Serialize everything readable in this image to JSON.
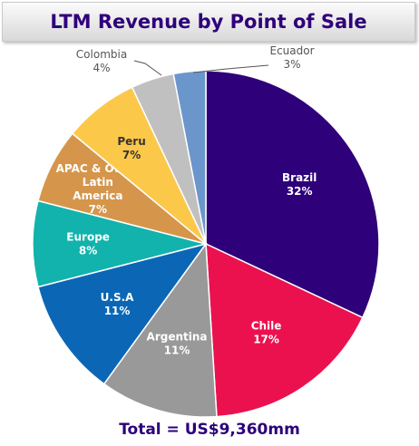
{
  "chart_data": {
    "type": "pie",
    "title": "LTM Revenue by Point of Sale",
    "slices": [
      {
        "label": "Brazil",
        "value": 32,
        "value_label": "32%",
        "color": "#2e0079",
        "text_color": "#ffffff",
        "label_placement": "inside"
      },
      {
        "label": "Chile",
        "value": 17,
        "value_label": "17%",
        "color": "#eb114f",
        "text_color": "#ffffff",
        "label_placement": "inside"
      },
      {
        "label": "Argentina",
        "value": 11,
        "value_label": "11%",
        "color": "#999999",
        "text_color": "#ffffff",
        "label_placement": "inside"
      },
      {
        "label": "U.S.A",
        "value": 11,
        "value_label": "11%",
        "color": "#0b67b6",
        "text_color": "#ffffff",
        "label_placement": "inside"
      },
      {
        "label": "Europe",
        "value": 8,
        "value_label": "8%",
        "color": "#12b3ac",
        "text_color": "#ffffff",
        "label_placement": "inside"
      },
      {
        "label": "APAC & Other Latin America",
        "value": 7,
        "value_label": "7%",
        "color": "#d5964c",
        "text_color": "#ffffff",
        "label_placement": "inside"
      },
      {
        "label": "Peru",
        "value": 7,
        "value_label": "7%",
        "color": "#fcc84a",
        "text_color": "#333333",
        "label_placement": "inside"
      },
      {
        "label": "Colombia",
        "value": 4,
        "value_label": "4%",
        "color": "#c0c0c0",
        "text_color": "#555555",
        "label_placement": "outside"
      },
      {
        "label": "Ecuador",
        "value": 3,
        "value_label": "3%",
        "color": "#6a96cc",
        "text_color": "#555555",
        "label_placement": "outside"
      }
    ]
  },
  "footer": {
    "total_label": "Total = US$9,360mm"
  }
}
